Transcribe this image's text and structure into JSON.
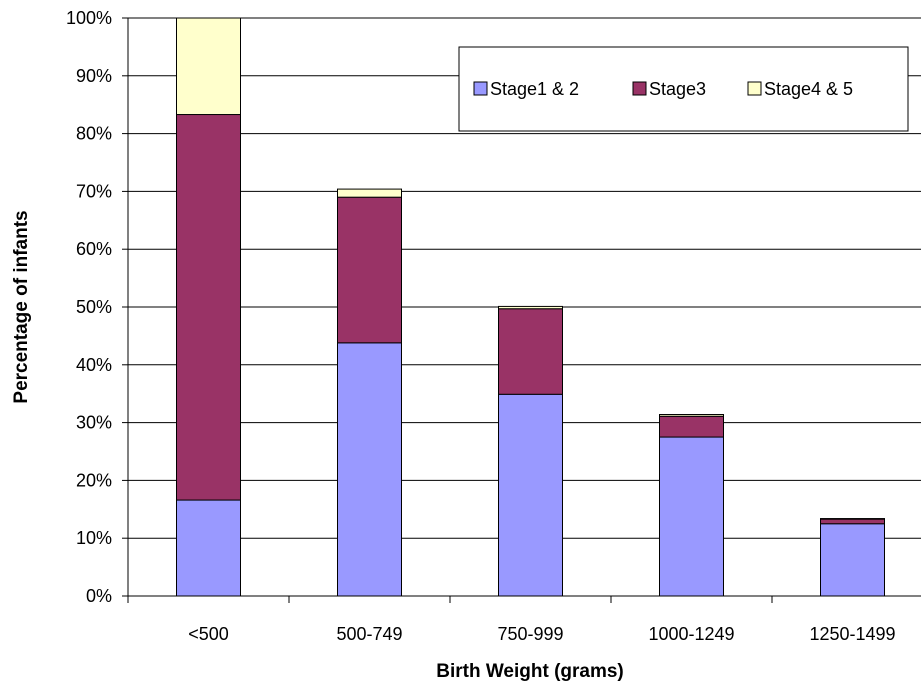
{
  "chart_data": {
    "type": "bar",
    "stacked": true,
    "categories": [
      "<500",
      "500-749",
      "750-999",
      "1000-1249",
      "1250-1499"
    ],
    "series": [
      {
        "name": "Stage1 & 2",
        "color": "#9999ff",
        "values": [
          16.6,
          43.8,
          34.9,
          27.5,
          12.5
        ]
      },
      {
        "name": "Stage3",
        "color": "#993366",
        "values": [
          66.7,
          25.2,
          14.8,
          3.6,
          0.8
        ]
      },
      {
        "name": "Stage4 & 5",
        "color": "#ffffcc",
        "values": [
          16.7,
          1.4,
          0.4,
          0.3,
          0.1
        ]
      }
    ],
    "title": "",
    "xlabel": "Birth Weight (grams)",
    "ylabel": "Percentage of infants",
    "ylim": [
      0,
      100
    ],
    "yticks": [
      "0%",
      "10%",
      "20%",
      "30%",
      "40%",
      "50%",
      "60%",
      "70%",
      "80%",
      "90%",
      "100%"
    ],
    "grid": true,
    "legend_position": "top-right"
  }
}
